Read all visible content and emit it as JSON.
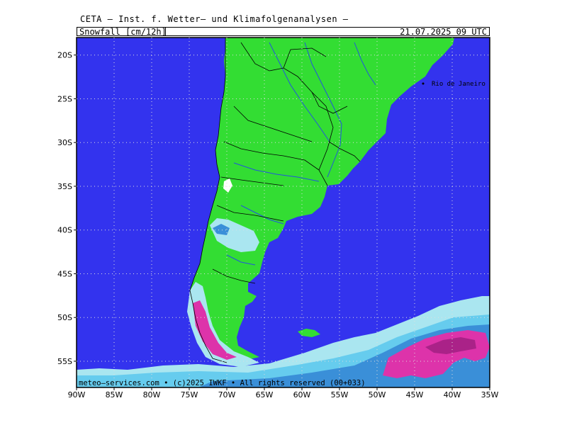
{
  "header": {
    "title": "CETA — Inst. f. Wetter— und Klimafolgenanalysen —",
    "parameter": "Snowfall [cm/12h]",
    "datetime": "21.07.2025 09 UTC"
  },
  "axes": {
    "lat_labels": [
      "20S",
      "25S",
      "30S",
      "35S",
      "40S",
      "45S",
      "50S",
      "55S"
    ],
    "lon_labels": [
      "90W",
      "85W",
      "80W",
      "75W",
      "70W",
      "65W",
      "60W",
      "55W",
      "50W",
      "45W",
      "40W",
      "35W"
    ]
  },
  "map": {
    "city": "Rio de Janeiro",
    "copyright": "meteo—services.com • (c)2025 IWKF • All rights reserved (00+033)",
    "colors": {
      "ocean": "#3333ee",
      "land": "#33dd33",
      "snow_light": "#aae6f0",
      "snow_cyan": "#66ccee",
      "snow_mid": "#3a8fd8",
      "snow_heavy": "#dd33aa",
      "snow_extreme": "#aa2288",
      "border": "#000000",
      "river": "#2255dd"
    }
  }
}
